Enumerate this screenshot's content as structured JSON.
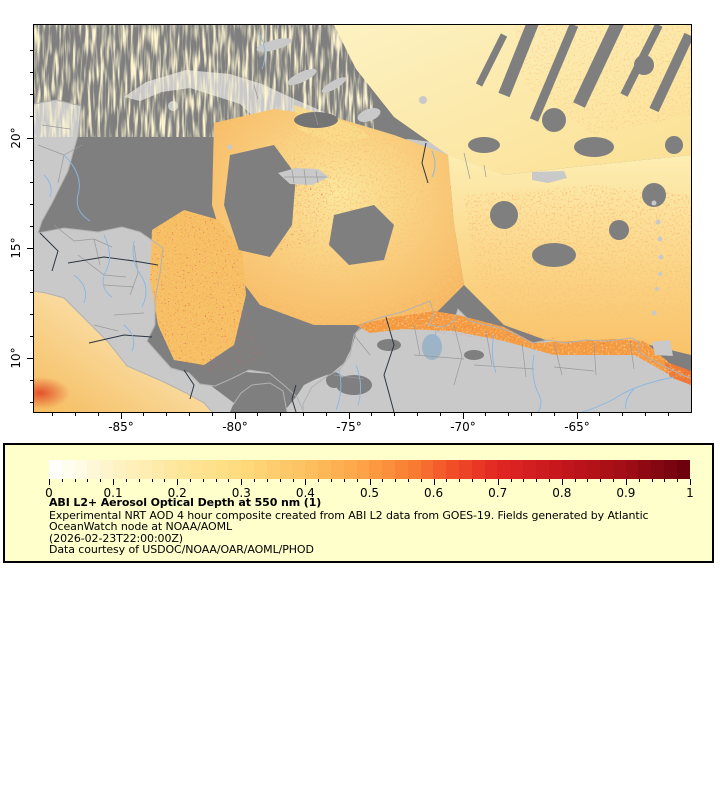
{
  "map": {
    "region_note": "GOES-19 AOD composite over Caribbean Sea, Gulf of Mexico and northern South America",
    "no_data_color": "#7f7f7f",
    "land_color": "#c9c9c9",
    "x_axis": {
      "tick_labels": [
        "-85°",
        "-80°",
        "-75°",
        "-70°",
        "-65°"
      ],
      "tick_values": [
        -85,
        -80,
        -75,
        -70,
        -65
      ],
      "minor_step_deg": 1,
      "lon_range": [
        -88.9,
        -60.0
      ]
    },
    "y_axis": {
      "tick_labels": [
        "20°",
        "15°",
        "10°"
      ],
      "tick_values": [
        20,
        15,
        10
      ],
      "minor_step_deg": 1,
      "lat_range": [
        7.6,
        25.2
      ]
    }
  },
  "legend": {
    "background": "#ffffcc",
    "title": "ABI L2+ Aerosol Optical Depth at 550 nm (1)",
    "lines": [
      "Experimental NRT AOD 4 hour composite created from ABI L2 data from GOES-19. Fields generated by Atlantic",
      "OceanWatch node at NOAA/AOML",
      "(2026-02-23T22:00:00Z)",
      "Data courtesy of USDOC/NOAA/OAR/AOML/PHOD"
    ],
    "colorbar": {
      "tick_labels": [
        "0",
        "0.1",
        "0.2",
        "0.3",
        "0.4",
        "0.5",
        "0.6",
        "0.7",
        "0.8",
        "0.9",
        "1"
      ],
      "tick_values": [
        0,
        0.1,
        0.2,
        0.3,
        0.4,
        0.5,
        0.6,
        0.7,
        0.8,
        0.9,
        1
      ],
      "minor_step": 0.02,
      "steps": 50,
      "stops": [
        [
          0.0,
          "#ffffff"
        ],
        [
          0.05,
          "#fffbe4"
        ],
        [
          0.1,
          "#fff3c6"
        ],
        [
          0.2,
          "#fee79c"
        ],
        [
          0.3,
          "#fedb7c"
        ],
        [
          0.4,
          "#fdc160"
        ],
        [
          0.5,
          "#fd9e43"
        ],
        [
          0.57,
          "#f97a31"
        ],
        [
          0.63,
          "#f14e28"
        ],
        [
          0.7,
          "#e12722"
        ],
        [
          0.8,
          "#c5161d"
        ],
        [
          0.9,
          "#a00d15"
        ],
        [
          1.0,
          "#69000d"
        ]
      ]
    }
  },
  "chart_data": {
    "type": "heatmap",
    "title": "ABI L2+ Aerosol Optical Depth at 550 nm (1)",
    "variable": "Aerosol Optical Depth at 550 nm (dimensionless)",
    "colorbar_range": [
      0,
      1
    ],
    "colorbar_ticks": [
      0,
      0.1,
      0.2,
      0.3,
      0.4,
      0.5,
      0.6,
      0.7,
      0.8,
      0.9,
      1
    ],
    "lon_ticks_deg": [
      -85,
      -80,
      -75,
      -70,
      -65
    ],
    "lat_ticks_deg": [
      20,
      15,
      10
    ],
    "lon_range_deg": [
      -88.9,
      -60.0
    ],
    "lat_range_deg": [
      7.6,
      25.2
    ],
    "legend_position": "bottom",
    "grid": false,
    "notes": "Yellow-to-dark-red shading = AOD 0 to 1; medium gray = no data/cloud; light gray = land with borders and rivers"
  }
}
